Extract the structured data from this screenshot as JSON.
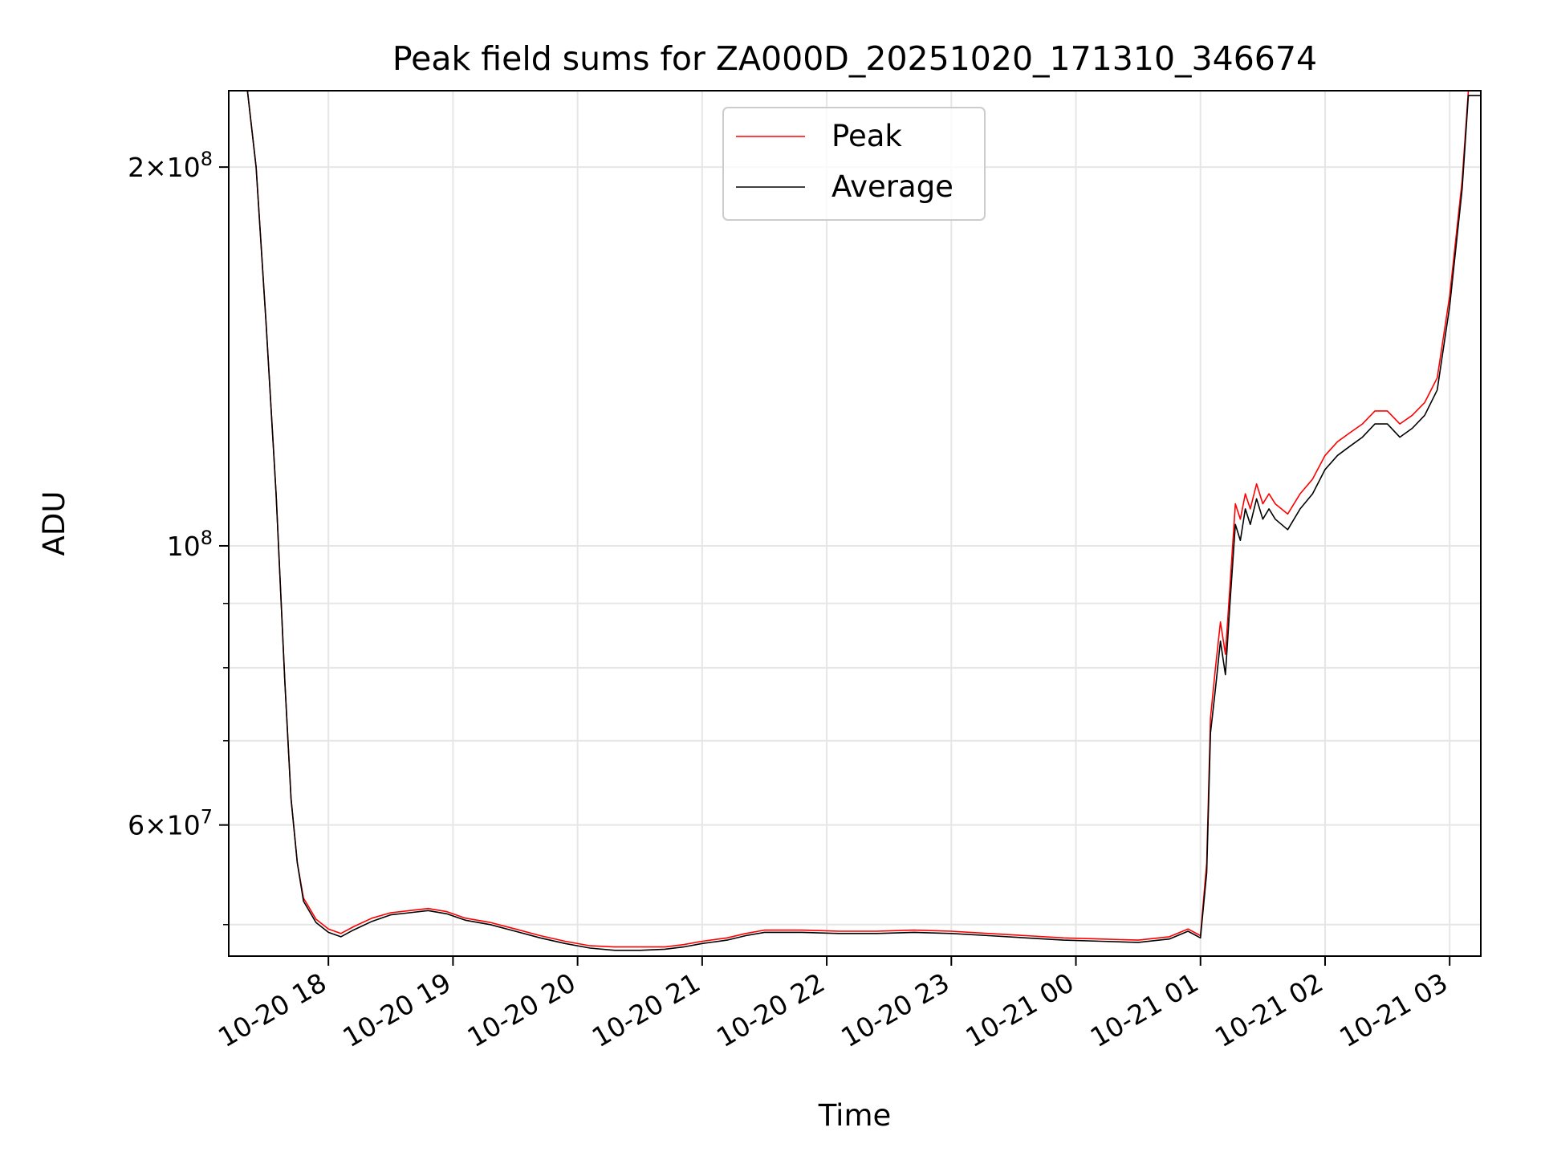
{
  "chart_data": {
    "type": "line",
    "title": "Peak field sums for ZA000D_20251020_171310_346674",
    "xlabel": "Time",
    "ylabel": "ADU",
    "yscale": "log",
    "grid": true,
    "legend_position": "top-center",
    "xlim": [
      17.2,
      27.25
    ],
    "ylim": [
      47200000,
      230000000
    ],
    "x_unit": "hours since 2025-10-20 00:00",
    "x_ticks": [
      {
        "value": 18,
        "label": "10-20 18"
      },
      {
        "value": 19,
        "label": "10-20 19"
      },
      {
        "value": 20,
        "label": "10-20 20"
      },
      {
        "value": 21,
        "label": "10-20 21"
      },
      {
        "value": 22,
        "label": "10-20 22"
      },
      {
        "value": 23,
        "label": "10-20 23"
      },
      {
        "value": 24,
        "label": "10-21 00"
      },
      {
        "value": 25,
        "label": "10-21 01"
      },
      {
        "value": 26,
        "label": "10-21 02"
      },
      {
        "value": 27,
        "label": "10-21 03"
      }
    ],
    "y_major_ticks": [
      {
        "value": 60000000,
        "mantissa": "6",
        "exponent": "7"
      },
      {
        "value": 100000000,
        "mantissa": "",
        "exponent": "8"
      },
      {
        "value": 200000000,
        "mantissa": "2",
        "exponent": "8"
      }
    ],
    "y_minor_ticks": [
      50000000,
      70000000,
      80000000,
      90000000
    ],
    "tick_base": "10",
    "tick_times": "×",
    "series": [
      {
        "name": "Peak",
        "color": "#ff0000",
        "x": [
          17.22,
          17.35,
          17.42,
          17.5,
          17.58,
          17.65,
          17.7,
          17.75,
          17.8,
          17.9,
          18.0,
          18.1,
          18.2,
          18.35,
          18.5,
          18.65,
          18.8,
          18.95,
          19.1,
          19.3,
          19.5,
          19.7,
          19.9,
          20.1,
          20.3,
          20.5,
          20.7,
          20.85,
          21.0,
          21.2,
          21.35,
          21.5,
          21.8,
          22.1,
          22.4,
          22.7,
          23.0,
          23.3,
          23.6,
          23.9,
          24.2,
          24.5,
          24.75,
          24.9,
          25.0,
          25.05,
          25.08,
          25.12,
          25.16,
          25.2,
          25.24,
          25.28,
          25.32,
          25.36,
          25.4,
          25.45,
          25.5,
          25.55,
          25.6,
          25.7,
          25.8,
          25.9,
          26.0,
          26.1,
          26.2,
          26.3,
          26.4,
          26.5,
          26.6,
          26.7,
          26.8,
          26.9,
          27.0,
          27.1,
          27.15,
          27.25
        ],
        "y": [
          230000000,
          230000000,
          200000000,
          150000000,
          110000000,
          78000000,
          63000000,
          56000000,
          52500000,
          50500000,
          49600000,
          49200000,
          49800000,
          50600000,
          51100000,
          51300000,
          51500000,
          51200000,
          50600000,
          50200000,
          49600000,
          49000000,
          48500000,
          48100000,
          48000000,
          48000000,
          48000000,
          48200000,
          48500000,
          48800000,
          49200000,
          49500000,
          49500000,
          49400000,
          49400000,
          49500000,
          49400000,
          49200000,
          49000000,
          48800000,
          48700000,
          48600000,
          48900000,
          49600000,
          49000000,
          56000000,
          73000000,
          80000000,
          87000000,
          82000000,
          94000000,
          108000000,
          105000000,
          110000000,
          107000000,
          112000000,
          108000000,
          110000000,
          108000000,
          106000000,
          110000000,
          113000000,
          118000000,
          121000000,
          123000000,
          125000000,
          128000000,
          128000000,
          125000000,
          127000000,
          130000000,
          136000000,
          158000000,
          195000000,
          230000000,
          230000000
        ]
      },
      {
        "name": "Average",
        "color": "#000000",
        "x": [
          17.22,
          17.35,
          17.42,
          17.5,
          17.58,
          17.65,
          17.7,
          17.75,
          17.8,
          17.9,
          18.0,
          18.1,
          18.2,
          18.35,
          18.5,
          18.65,
          18.8,
          18.95,
          19.1,
          19.3,
          19.5,
          19.7,
          19.9,
          20.1,
          20.3,
          20.5,
          20.7,
          20.85,
          21.0,
          21.2,
          21.35,
          21.5,
          21.8,
          22.1,
          22.4,
          22.7,
          23.0,
          23.3,
          23.6,
          23.9,
          24.2,
          24.5,
          24.75,
          24.9,
          25.0,
          25.05,
          25.08,
          25.12,
          25.16,
          25.2,
          25.24,
          25.28,
          25.32,
          25.36,
          25.4,
          25.45,
          25.5,
          25.55,
          25.6,
          25.7,
          25.8,
          25.9,
          26.0,
          26.1,
          26.2,
          26.3,
          26.4,
          26.5,
          26.6,
          26.7,
          26.8,
          26.9,
          27.0,
          27.1,
          27.15,
          27.25
        ],
        "y": [
          230000000,
          230000000,
          200000000,
          150000000,
          110000000,
          78000000,
          63000000,
          56000000,
          52200000,
          50200000,
          49300000,
          48900000,
          49500000,
          50300000,
          50900000,
          51100000,
          51300000,
          51000000,
          50400000,
          50000000,
          49400000,
          48800000,
          48300000,
          47900000,
          47700000,
          47700000,
          47800000,
          48000000,
          48300000,
          48600000,
          49000000,
          49300000,
          49300000,
          49200000,
          49200000,
          49300000,
          49200000,
          49000000,
          48800000,
          48600000,
          48500000,
          48400000,
          48700000,
          49400000,
          48800000,
          55000000,
          71000000,
          77000000,
          84000000,
          79000000,
          91000000,
          104000000,
          101000000,
          107000000,
          104000000,
          109000000,
          105000000,
          107000000,
          105000000,
          103000000,
          107000000,
          110000000,
          115000000,
          118000000,
          120000000,
          122000000,
          125000000,
          125000000,
          122000000,
          124000000,
          127000000,
          133000000,
          155000000,
          192000000,
          228000000,
          228000000
        ]
      }
    ]
  }
}
